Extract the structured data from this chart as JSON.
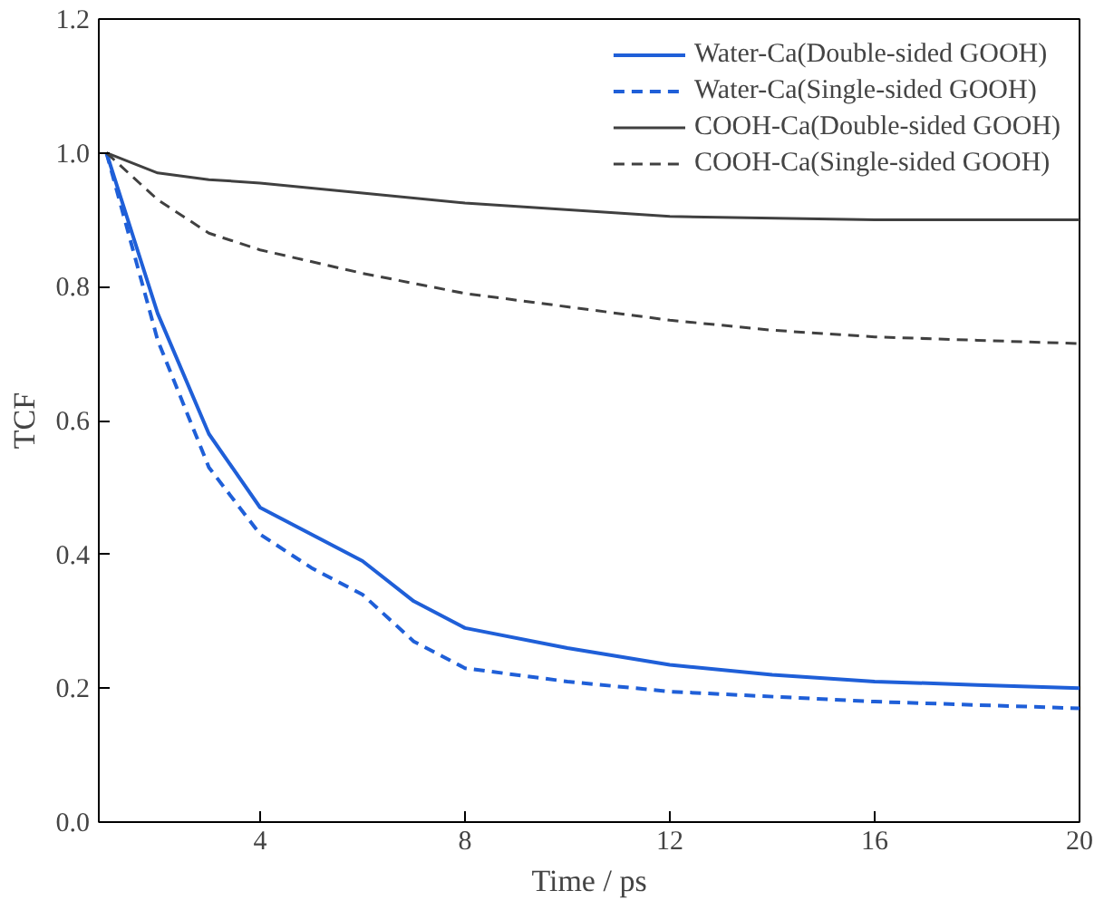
{
  "chart_data": {
    "type": "line",
    "xlabel": "Time / ps",
    "ylabel": "TCF",
    "xlim": [
      0.85,
      20
    ],
    "ylim": [
      0,
      1.2
    ],
    "xticks": [
      4,
      8,
      12,
      16,
      20
    ],
    "yticks": [
      {
        "value": 0,
        "label": "0.0"
      },
      0.2,
      0.4,
      0.6,
      0.8,
      {
        "value": 1,
        "label": "1.0"
      },
      1.2
    ],
    "grid": false,
    "legend": "top right",
    "marker": "none",
    "series": [
      {
        "name": "Water-Ca(Double-sided GOOH)",
        "color": "#1f5fd8",
        "line_style": "solid",
        "x": [
          1,
          1.5,
          2,
          3,
          4,
          5,
          6,
          7,
          8,
          10,
          12,
          14,
          16,
          18,
          20
        ],
        "values": [
          1.0,
          0.88,
          0.76,
          0.58,
          0.47,
          0.43,
          0.39,
          0.33,
          0.29,
          0.26,
          0.235,
          0.22,
          0.21,
          0.205,
          0.2
        ]
      },
      {
        "name": "Water-Ca(Single-sided GOOH)",
        "color": "#1f5fd8",
        "line_style": "dashed",
        "x": [
          1,
          1.5,
          2,
          3,
          4,
          5,
          6,
          7,
          8,
          10,
          12,
          16,
          20
        ],
        "values": [
          1.0,
          0.86,
          0.72,
          0.53,
          0.43,
          0.38,
          0.34,
          0.27,
          0.23,
          0.21,
          0.195,
          0.18,
          0.17
        ]
      },
      {
        "name": "COOH-Ca(Double-sided GOOH)",
        "color": "#404040",
        "line_style": "solid",
        "x": [
          1,
          2,
          3,
          4,
          6,
          8,
          12,
          16,
          20
        ],
        "values": [
          1.0,
          0.97,
          0.96,
          0.955,
          0.94,
          0.925,
          0.905,
          0.9,
          0.9
        ]
      },
      {
        "name": "COOH-Ca(Single-sided GOOH)",
        "color": "#404040",
        "line_style": "dashed",
        "x": [
          1,
          2,
          3,
          4,
          6,
          8,
          10,
          12,
          14,
          16,
          18,
          20
        ],
        "values": [
          1.0,
          0.93,
          0.88,
          0.855,
          0.82,
          0.79,
          0.77,
          0.75,
          0.735,
          0.725,
          0.72,
          0.715
        ]
      }
    ]
  }
}
